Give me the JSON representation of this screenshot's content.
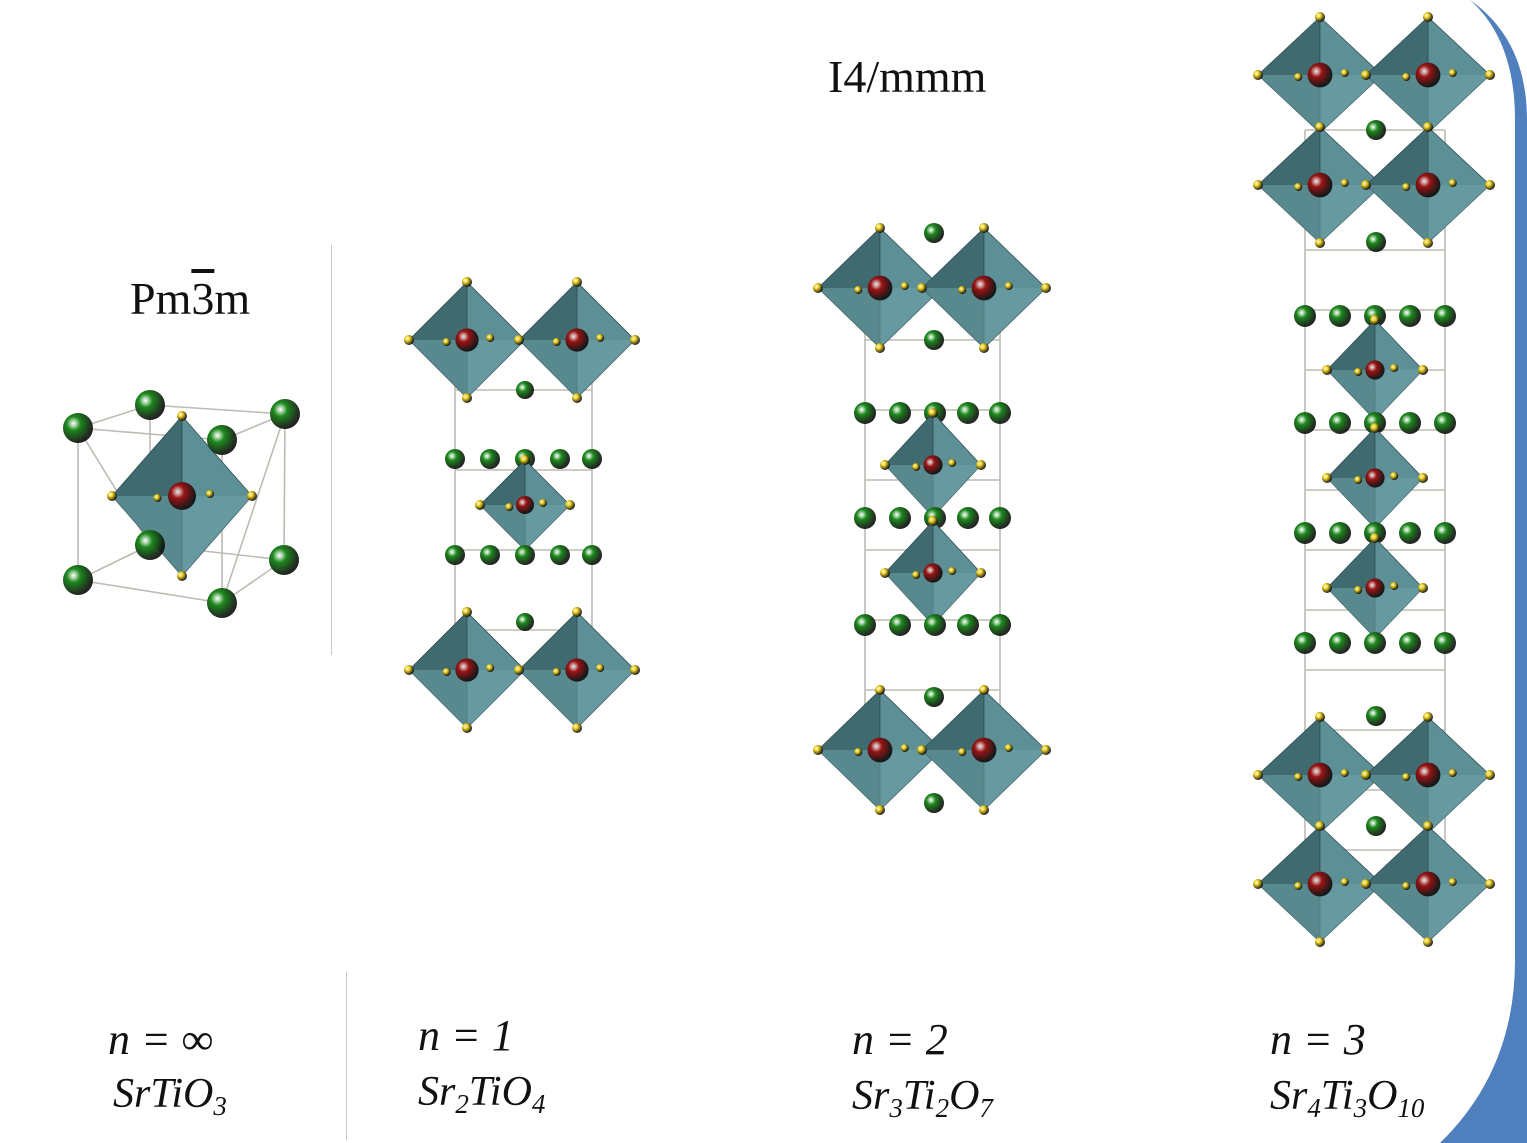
{
  "space_groups": {
    "cubic": {
      "pre": "Pm",
      "bar": "3",
      "post": "m"
    },
    "tetragonal": "I4/mmm"
  },
  "structures": [
    {
      "n": "n = ∞",
      "formula_parts": [
        {
          "t": "SrTiO"
        },
        {
          "sub": "3"
        }
      ]
    },
    {
      "n": "n = 1",
      "formula_parts": [
        {
          "t": "Sr"
        },
        {
          "sub": "2"
        },
        {
          "t": "TiO"
        },
        {
          "sub": "4"
        }
      ]
    },
    {
      "n": "n = 2",
      "formula_parts": [
        {
          "t": "Sr"
        },
        {
          "sub": "3"
        },
        {
          "t": "Ti"
        },
        {
          "sub": "2"
        },
        {
          "t": "O"
        },
        {
          "sub": "7"
        }
      ]
    },
    {
      "n": "n = 3",
      "formula_parts": [
        {
          "t": "Sr"
        },
        {
          "sub": "4"
        },
        {
          "t": "Ti"
        },
        {
          "sub": "3"
        },
        {
          "t": "O"
        },
        {
          "sub": "10"
        }
      ]
    }
  ],
  "colors": {
    "sr_atom": "#1d8a1d",
    "ti_atom": "#9c1414",
    "o_atom": "#f2d21c",
    "octahedron": "#5d8f96",
    "octahedron_dark": "#3f6a70",
    "bond": "#bdbbb2",
    "frame_accent": "#4f7fbd"
  },
  "legend_icons": [
    "sr-atom-icon",
    "ti-atom-icon",
    "o-atom-icon",
    "octahedron-icon"
  ]
}
